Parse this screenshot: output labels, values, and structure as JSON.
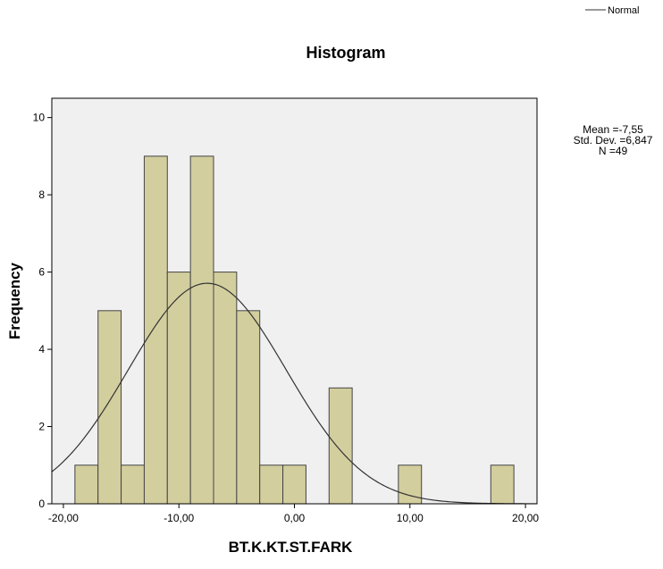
{
  "chart_data": {
    "type": "bar",
    "title": "Histogram",
    "xlabel": "BT.K.KT.ST.FARK",
    "ylabel": "Frequency",
    "xlim": [
      -21,
      21
    ],
    "ylim": [
      0,
      10.5
    ],
    "x_ticks": [
      -20,
      -10,
      0,
      10,
      20
    ],
    "x_tick_labels": [
      "-20,00",
      "-10,00",
      "0,00",
      "10,00",
      "20,00"
    ],
    "y_ticks": [
      0,
      2,
      4,
      6,
      8,
      10
    ],
    "y_tick_labels": [
      "0",
      "2",
      "4",
      "6",
      "8",
      "10"
    ],
    "bin_width": 2,
    "bins": [
      {
        "start": -19,
        "end": -17,
        "count": 1
      },
      {
        "start": -17,
        "end": -15,
        "count": 5
      },
      {
        "start": -15,
        "end": -13,
        "count": 1
      },
      {
        "start": -13,
        "end": -11,
        "count": 9
      },
      {
        "start": -11,
        "end": -9,
        "count": 6
      },
      {
        "start": -9,
        "end": -7,
        "count": 9
      },
      {
        "start": -7,
        "end": -5,
        "count": 6
      },
      {
        "start": -5,
        "end": -3,
        "count": 5
      },
      {
        "start": -3,
        "end": -1,
        "count": 1
      },
      {
        "start": -1,
        "end": 1,
        "count": 1
      },
      {
        "start": 1,
        "end": 3,
        "count": 0
      },
      {
        "start": 3,
        "end": 5,
        "count": 3
      },
      {
        "start": 5,
        "end": 7,
        "count": 0
      },
      {
        "start": 7,
        "end": 9,
        "count": 0
      },
      {
        "start": 9,
        "end": 11,
        "count": 1
      },
      {
        "start": 11,
        "end": 13,
        "count": 0
      },
      {
        "start": 13,
        "end": 15,
        "count": 0
      },
      {
        "start": 15,
        "end": 17,
        "count": 0
      },
      {
        "start": 17,
        "end": 19,
        "count": 1
      }
    ],
    "normal_curve": {
      "name": "Normal",
      "mean": -7.55,
      "std_dev": 6.847,
      "n": 49
    },
    "legend": {
      "position": "top-right",
      "entries": [
        "Normal"
      ]
    },
    "stats": [
      "Mean =-7,55",
      "Std. Dev. =6,847",
      "N =49"
    ],
    "grid": false,
    "colors": {
      "bar_fill": "#D3CE9E",
      "bar_stroke": "#444444",
      "plot_background": "#F0F0F0",
      "curve": "#333333"
    }
  }
}
